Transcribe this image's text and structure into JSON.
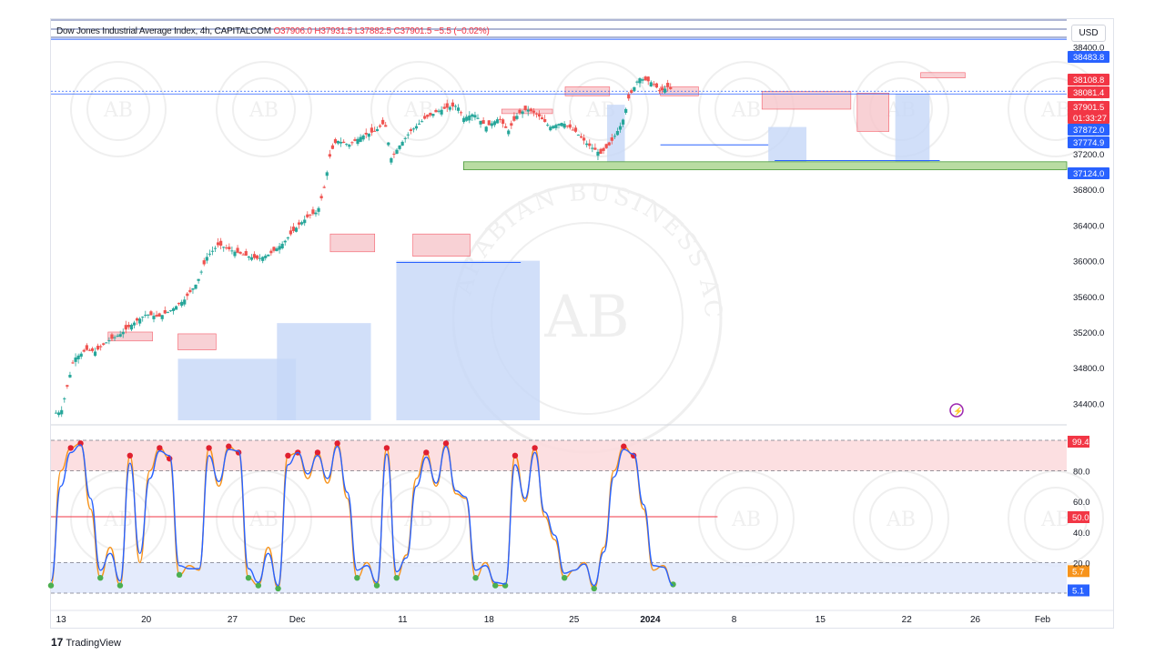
{
  "header": {
    "symbol": "Dow Jones Industrial Average Index, 4h, CAPITALCOM",
    "open": "O37906.0",
    "high": "H37931.5",
    "low": "L37882.5",
    "close": "C37901.5",
    "change": "−5.5 (−0.02%)",
    "currency": "USD"
  },
  "watermark": {
    "monogram": "AB",
    "brand": "ARABIAN BUSINESS ACADEMY"
  },
  "branding": {
    "logo": "TradingView",
    "logo_mark": "17"
  },
  "price_labels": [
    {
      "text": "38483.8",
      "color": "#2962ff"
    },
    {
      "text": "38108.8",
      "color": "#f23645"
    },
    {
      "text": "38081.4",
      "color": "#f23645"
    },
    {
      "text": "37901.5",
      "color": "#f23645"
    },
    {
      "text": "01:33:27",
      "color": "#f23645"
    },
    {
      "text": "37872.0",
      "color": "#2962ff"
    },
    {
      "text": "37774.9",
      "color": "#2962ff"
    },
    {
      "text": "37124.0",
      "color": "#2962ff"
    }
  ],
  "osc_labels": [
    {
      "text": "99.4",
      "color": "#f23645"
    },
    {
      "text": "50.0",
      "color": "#f23645"
    },
    {
      "text": "5.7",
      "color": "#f7931a"
    },
    {
      "text": "5.1",
      "color": "#2962ff"
    }
  ],
  "chart_data": [
    {
      "type": "candlestick",
      "title": "Dow Jones Industrial Average Index, 4h, CAPITALCOM",
      "ylim": [
        34200,
        38700
      ],
      "y_ticks": [
        "38400.0",
        "37200.0",
        "36800.0",
        "36400.0",
        "36000.0",
        "35600.0",
        "35200.0",
        "34800.0",
        "34400.0"
      ],
      "x_ticks": [
        "13",
        "20",
        "27",
        "Dec",
        "11",
        "18",
        "25",
        "2024",
        "8",
        "15",
        "22",
        "26",
        "Feb"
      ],
      "close_path": [
        [
          0,
          34290
        ],
        [
          0.8,
          34300
        ],
        [
          1.8,
          34900
        ],
        [
          2.8,
          35000
        ],
        [
          3.5,
          34980
        ],
        [
          4.5,
          35100
        ],
        [
          5.5,
          35180
        ],
        [
          6.5,
          35300
        ],
        [
          7.5,
          35400
        ],
        [
          8.5,
          35370
        ],
        [
          9.5,
          35450
        ],
        [
          10.5,
          35560
        ],
        [
          11.5,
          35750
        ],
        [
          12.3,
          36050
        ],
        [
          13.2,
          36180
        ],
        [
          14.5,
          36100
        ],
        [
          15.5,
          36050
        ],
        [
          16.3,
          36020
        ],
        [
          17.3,
          36080
        ],
        [
          18.3,
          36200
        ],
        [
          19.5,
          36400
        ],
        [
          20.3,
          36500
        ],
        [
          21.0,
          36550
        ],
        [
          21.5,
          36800
        ],
        [
          22.0,
          37200
        ],
        [
          22.5,
          37350
        ],
        [
          23.5,
          37300
        ],
        [
          24.5,
          37400
        ],
        [
          25.5,
          37450
        ],
        [
          26.3,
          37550
        ],
        [
          26.8,
          37150
        ],
        [
          27.5,
          37300
        ],
        [
          28.3,
          37450
        ],
        [
          29.5,
          37600
        ],
        [
          30.5,
          37680
        ],
        [
          31.3,
          37720
        ],
        [
          32.0,
          37740
        ],
        [
          32.5,
          37600
        ],
        [
          33.3,
          37650
        ],
        [
          34.3,
          37500
        ],
        [
          35.3,
          37600
        ],
        [
          36.0,
          37450
        ],
        [
          36.8,
          37650
        ],
        [
          37.5,
          37700
        ],
        [
          38.3,
          37640
        ],
        [
          39.3,
          37500
        ],
        [
          40.3,
          37550
        ],
        [
          41.3,
          37450
        ],
        [
          42.3,
          37300
        ],
        [
          43.3,
          37200
        ],
        [
          44.0,
          37300
        ],
        [
          45.0,
          37550
        ],
        [
          45.5,
          37820
        ],
        [
          46.3,
          38050
        ],
        [
          47.3,
          38000
        ],
        [
          48.0,
          37900
        ],
        [
          48.6,
          37950
        ],
        [
          49.0,
          37901
        ]
      ],
      "days": [
        {
          "label": "13",
          "x": 0.8
        },
        {
          "label": "20",
          "x": 7.5
        },
        {
          "label": "27",
          "x": 14.3
        },
        {
          "label": "Dec",
          "x": 19.4
        },
        {
          "label": "11",
          "x": 27.7
        },
        {
          "label": "18",
          "x": 34.5
        },
        {
          "label": "25",
          "x": 41.2
        },
        {
          "label": "2024",
          "x": 47.2
        },
        {
          "label": "8",
          "x": 53.8
        },
        {
          "label": "15",
          "x": 60.6
        },
        {
          "label": "22",
          "x": 67.4
        },
        {
          "label": "26",
          "x": 72.8
        },
        {
          "label": "Feb",
          "x": 78.1
        }
      ],
      "levels": [
        {
          "name": "38483.8",
          "y": 38483.8
        },
        {
          "name": "37901.5",
          "y": 37901.5
        },
        {
          "name": "37124.0",
          "y": 37124.0
        }
      ],
      "support_zone": [
        37020,
        37110
      ]
    },
    {
      "type": "line",
      "title": "Stochastic oscillator",
      "ylim": [
        0,
        100
      ],
      "y_ticks": [
        "80.0",
        "60.0",
        "40.0",
        "20.0"
      ],
      "bands": {
        "overbought": 80,
        "oversold": 20,
        "mid": 50
      },
      "series": [
        {
          "name": "%K",
          "color": "#f7931a",
          "last": 5.7,
          "values": [
            5,
            80,
            95,
            98,
            55,
            10,
            30,
            5,
            90,
            20,
            80,
            95,
            88,
            12,
            18,
            15,
            95,
            70,
            96,
            92,
            10,
            5,
            30,
            3,
            90,
            92,
            75,
            92,
            72,
            98,
            62,
            10,
            20,
            5,
            95,
            10,
            25,
            75,
            92,
            70,
            98,
            65,
            62,
            10,
            20,
            5,
            5,
            90,
            60,
            95,
            50,
            35,
            10,
            15,
            20,
            3,
            30,
            80,
            96,
            90,
            55,
            15,
            18,
            5.7
          ]
        },
        {
          "name": "%D",
          "color": "#2962ff",
          "last": 5.1,
          "values": [
            8,
            70,
            92,
            97,
            62,
            15,
            26,
            8,
            85,
            26,
            75,
            93,
            90,
            18,
            16,
            16,
            90,
            73,
            94,
            93,
            16,
            7,
            26,
            5,
            84,
            92,
            78,
            90,
            75,
            96,
            66,
            15,
            18,
            7,
            91,
            14,
            23,
            70,
            89,
            72,
            96,
            67,
            63,
            15,
            18,
            7,
            6,
            84,
            62,
            92,
            53,
            38,
            13,
            15,
            19,
            5,
            27,
            76,
            94,
            91,
            58,
            18,
            17,
            5.1
          ]
        }
      ]
    }
  ]
}
